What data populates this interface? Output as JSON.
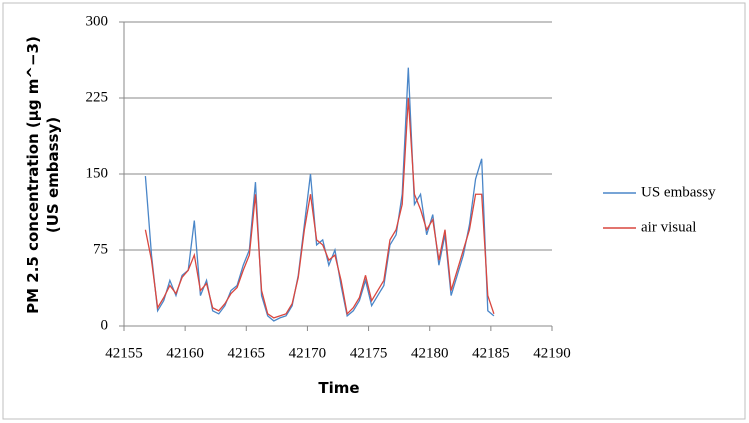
{
  "chart_data": {
    "type": "line",
    "xlabel": "Time",
    "ylabel": [
      "PM 2.5 concentration (µg m^−3)",
      "(US embassy)"
    ],
    "x": [
      42156.75,
      42157.25,
      42157.75,
      42158.25,
      42158.75,
      42159.25,
      42159.75,
      42160.25,
      42160.75,
      42161.25,
      42161.75,
      42162.25,
      42162.75,
      42163.25,
      42163.75,
      42164.25,
      42164.75,
      42165.25,
      42165.75,
      42166.25,
      42166.75,
      42167.25,
      42167.75,
      42168.25,
      42168.75,
      42169.25,
      42169.75,
      42170.25,
      42170.75,
      42171.25,
      42171.75,
      42172.25,
      42172.75,
      42173.25,
      42173.75,
      42174.25,
      42174.75,
      42175.25,
      42175.75,
      42176.25,
      42176.75,
      42177.25,
      42177.75,
      42178.25,
      42178.75,
      42179.25,
      42179.75,
      42180.25,
      42180.75,
      42181.25,
      42181.75,
      42182.25,
      42182.75,
      42183.25,
      42183.75,
      42184.25,
      42184.75,
      42185.25
    ],
    "series": [
      {
        "name": "US embassy",
        "color": "#4a86c8",
        "values": [
          148,
          70,
          15,
          25,
          45,
          30,
          50,
          55,
          104,
          30,
          45,
          15,
          12,
          20,
          35,
          40,
          60,
          75,
          142,
          30,
          10,
          5,
          8,
          10,
          20,
          50,
          100,
          150,
          80,
          85,
          60,
          75,
          40,
          10,
          15,
          25,
          45,
          20,
          30,
          40,
          80,
          90,
          130,
          255,
          120,
          130,
          90,
          110,
          60,
          90,
          30,
          50,
          70,
          100,
          145,
          165,
          15,
          10
        ]
      },
      {
        "name": "air visual",
        "color": "#d9473f",
        "values": [
          95,
          65,
          18,
          28,
          40,
          32,
          48,
          55,
          70,
          35,
          42,
          18,
          15,
          22,
          32,
          38,
          55,
          70,
          130,
          35,
          12,
          8,
          10,
          12,
          22,
          48,
          95,
          130,
          85,
          80,
          65,
          70,
          45,
          12,
          18,
          28,
          50,
          25,
          35,
          45,
          85,
          95,
          120,
          225,
          130,
          115,
          95,
          105,
          65,
          95,
          35,
          55,
          75,
          95,
          130,
          130,
          30,
          12
        ]
      }
    ],
    "xlim": [
      42155,
      42190
    ],
    "xticks": [
      42155,
      42160,
      42165,
      42170,
      42175,
      42180,
      42185,
      42190
    ],
    "ylim": [
      0,
      300
    ],
    "yticks": [
      0,
      75,
      150,
      225,
      300
    ],
    "grid": true
  }
}
